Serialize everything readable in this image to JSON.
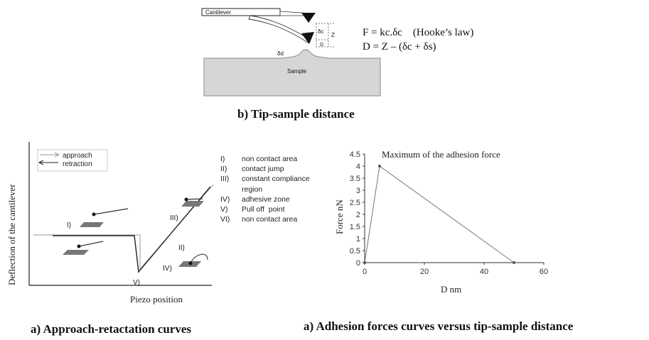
{
  "panel_b": {
    "cantilever_label": "Cantilever",
    "sample_label": "Sample",
    "delta_c_label": "δc",
    "z_label": "Z",
    "d_label": "D",
    "delta_d_label": "δd",
    "formula_1": "F = kc.δc    (Hooke’s law)",
    "formula_2": "D = Z – (δc + δs)",
    "caption": "b) Tip-sample distance"
  },
  "panel_a1": {
    "ylabel": "Deflection of the cantilever",
    "xlabel": "Piezo position",
    "legend": [
      {
        "label": "approach",
        "color": "#999999"
      },
      {
        "label": "retraction",
        "color": "#222222"
      }
    ],
    "region_markers": [
      "I)",
      "II)",
      "III)",
      "IV)",
      "V)"
    ],
    "regions": [
      {
        "num": "I)",
        "text": "non contact area"
      },
      {
        "num": "II)",
        "text": "contact jump"
      },
      {
        "num": "III)",
        "text": "constant compliance\nregion"
      },
      {
        "num": "IV)",
        "text": "adhesive zone"
      },
      {
        "num": "V)",
        "text": "Pull off  point"
      },
      {
        "num": "VI)",
        "text": "non contact area"
      }
    ],
    "caption": "a) Approach-retactation curves"
  },
  "panel_a2": {
    "caption": "a) Adhesion forces curves versus tip-sample distance"
  },
  "chart_data": {
    "type": "line",
    "title": "",
    "annotation": "Maximum  of  the adhesion  force",
    "xlabel": "D nm",
    "ylabel": "Force  nN",
    "x": [
      0,
      5,
      50
    ],
    "series": [
      {
        "values": [
          0,
          4,
          0
        ]
      }
    ],
    "xlim": [
      0,
      60
    ],
    "ylim": [
      0,
      4.5
    ],
    "xticks": [
      "0",
      "20",
      "40",
      "60"
    ],
    "yticks": [
      "0",
      "0.5",
      "1",
      "1.5",
      "2",
      "2.5",
      "3",
      "3.5",
      "4",
      "4.5"
    ],
    "grid": false,
    "line_color": "#777777"
  }
}
